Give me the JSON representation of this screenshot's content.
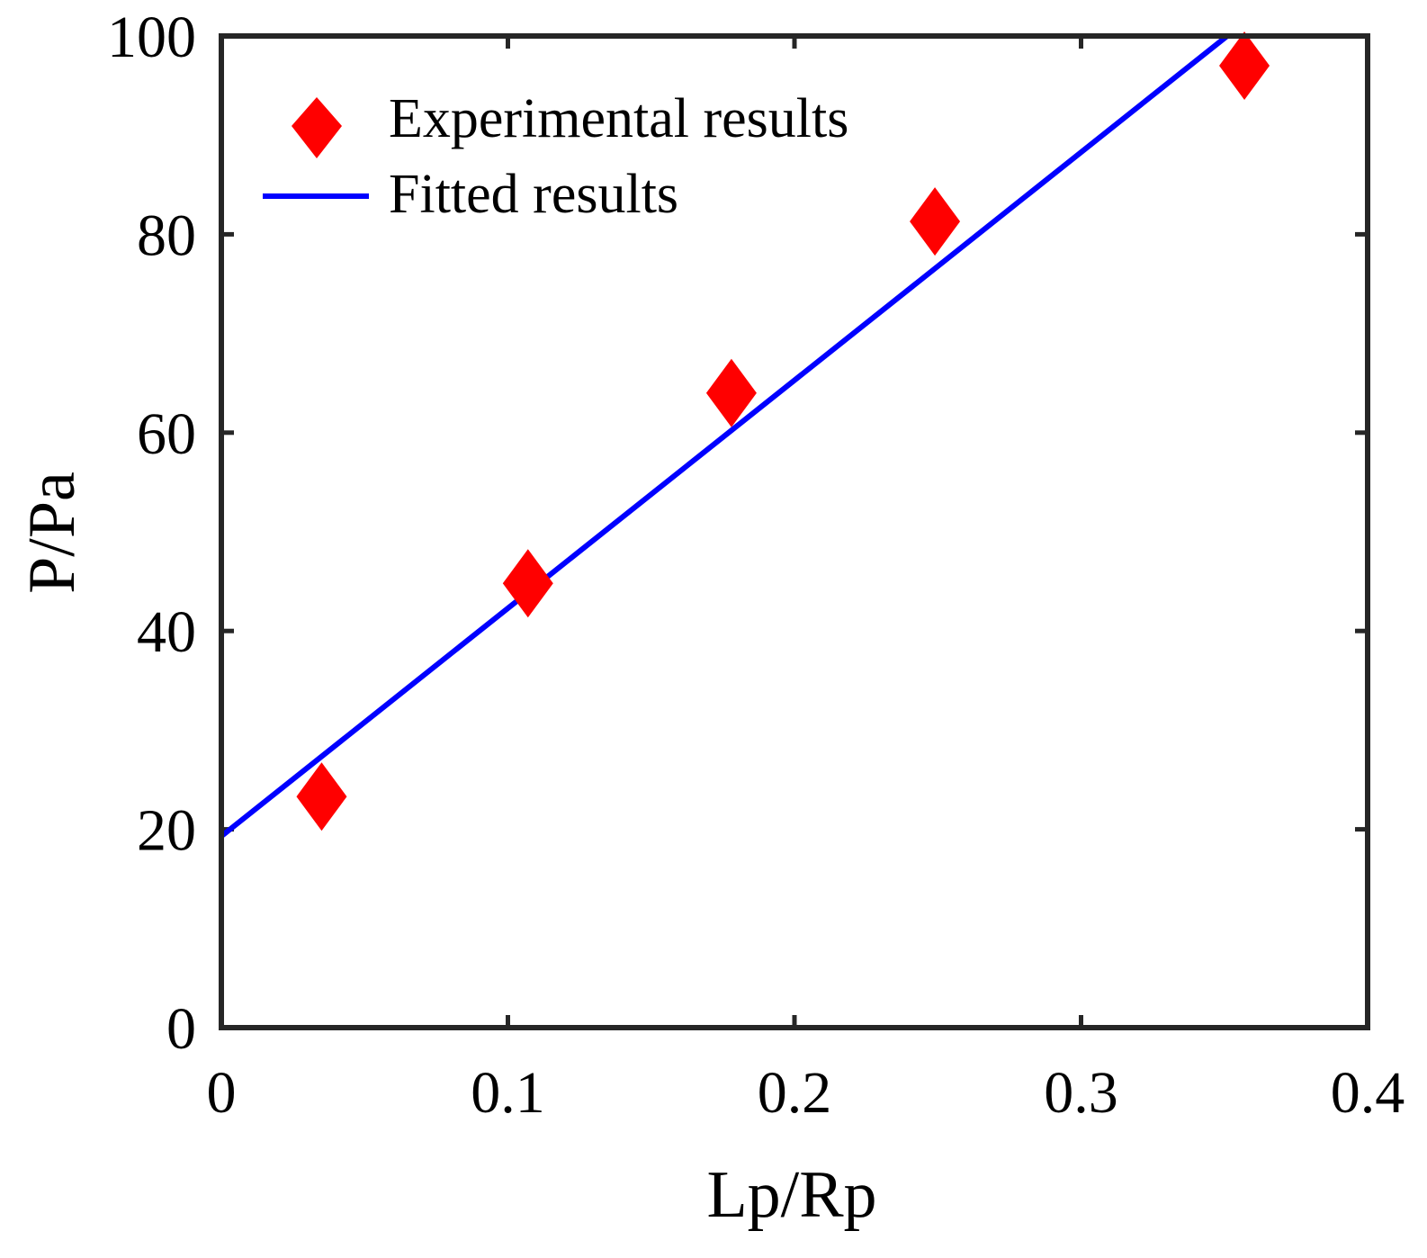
{
  "chart_data": {
    "type": "scatter",
    "xlabel": "Lp/Rp",
    "ylabel": "P/Pa",
    "xlim": [
      0,
      0.4
    ],
    "ylim": [
      0,
      100
    ],
    "x_ticks": [
      0,
      0.1,
      0.2,
      0.3,
      0.4
    ],
    "x_tick_labels": [
      "0",
      "0.1",
      "0.2",
      "0.3",
      "0.4"
    ],
    "y_ticks": [
      0,
      20,
      40,
      60,
      80,
      100
    ],
    "y_tick_labels": [
      "0",
      "20",
      "40",
      "60",
      "80",
      "100"
    ],
    "grid": false,
    "legend_position": "top-left",
    "series": [
      {
        "name": "Experimental results",
        "kind": "marker",
        "marker": "diamond",
        "color": "#ff0000",
        "x": [
          0.035,
          0.107,
          0.178,
          0.249,
          0.357
        ],
        "y": [
          23.3,
          44.8,
          64.0,
          81.3,
          97.0
        ]
      },
      {
        "name": "Fitted results",
        "kind": "line",
        "color": "#0000ff",
        "x": [
          0,
          0.351
        ],
        "y": [
          19.3,
          100
        ]
      }
    ]
  }
}
